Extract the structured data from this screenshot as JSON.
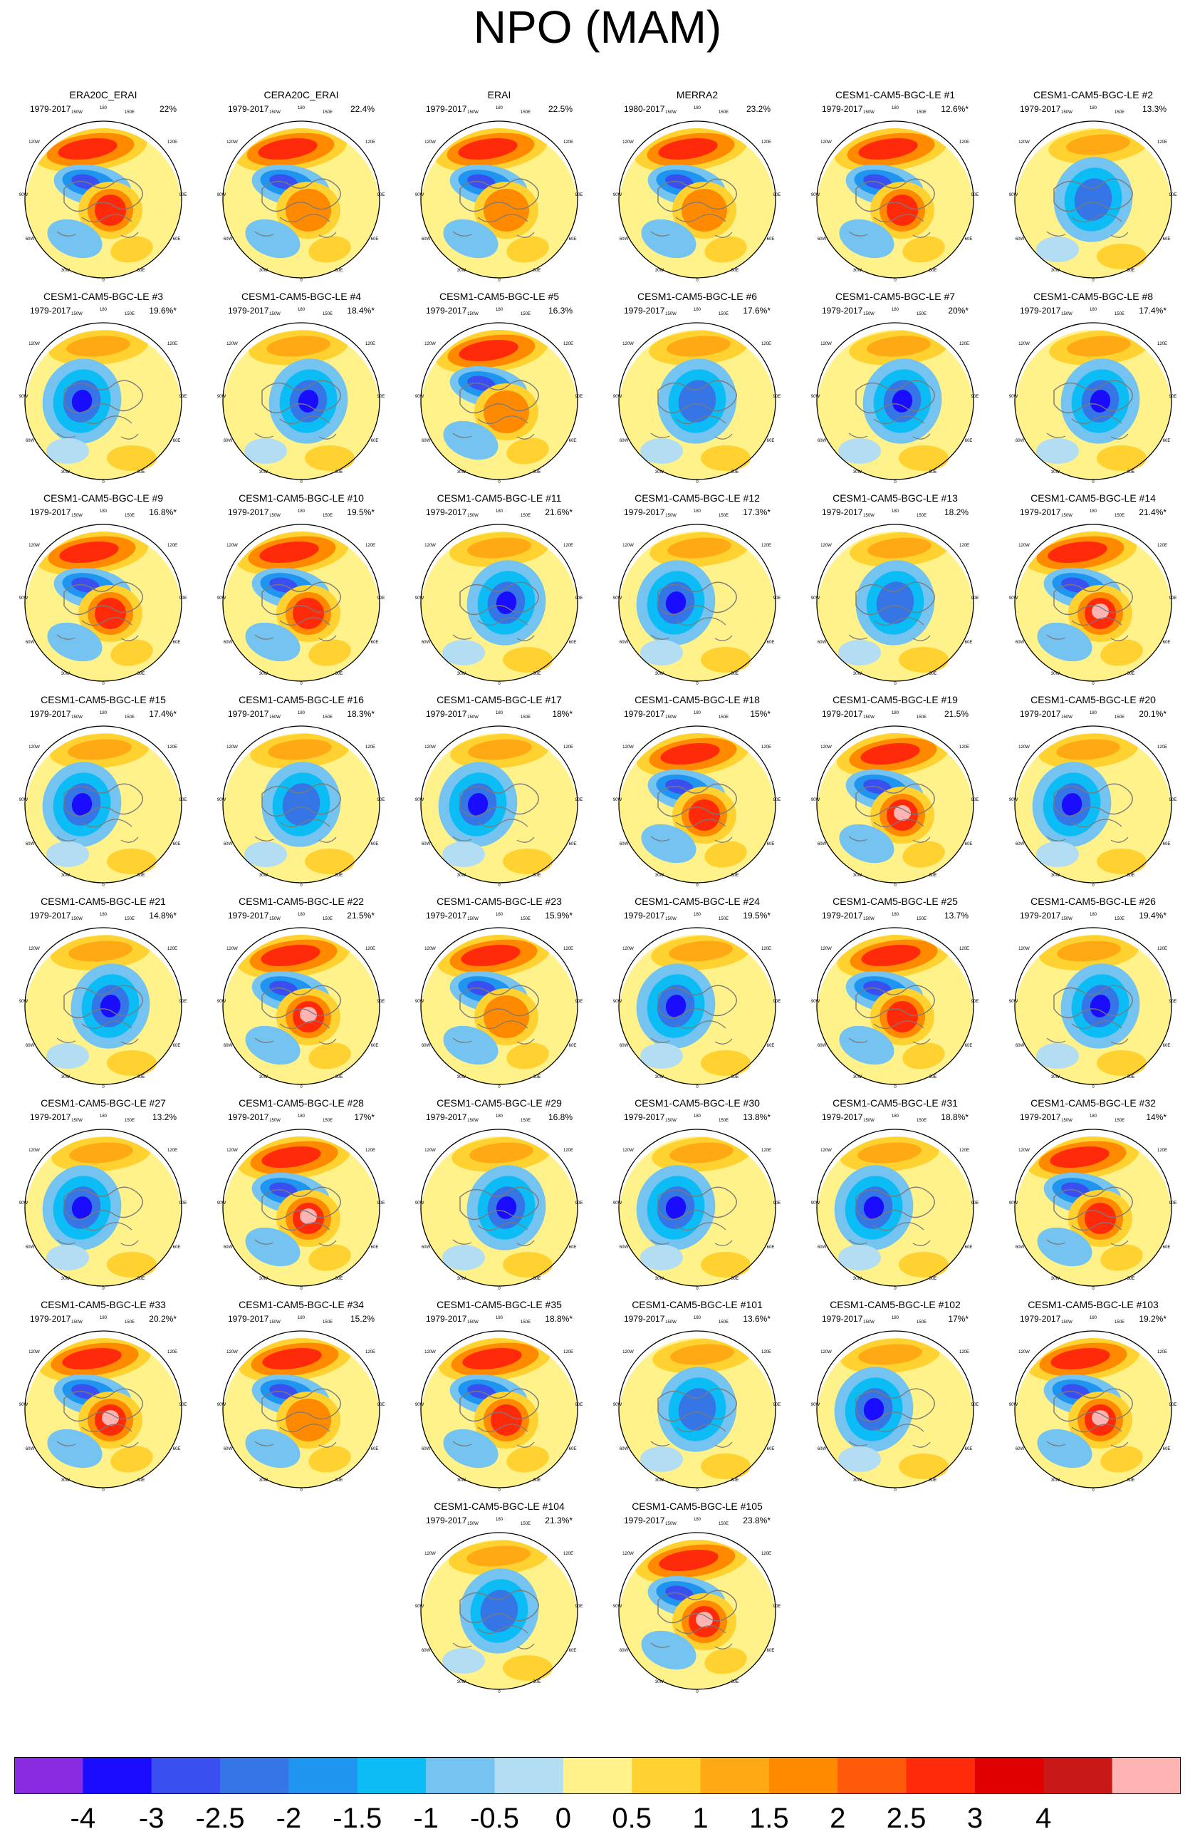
{
  "title": "NPO (MAM)",
  "map_labels": {
    "lon_top": "180",
    "lon_150w": "150W",
    "lon_150e": "150E",
    "lon_120w": "120W",
    "lon_120e": "120E",
    "lon_90w": "90W",
    "lon_90e": "90E",
    "lon_60w": "60W",
    "lon_60e": "60E",
    "lon_30w": "30W",
    "lon_30e": "30E",
    "lon_bottom": "0"
  },
  "panels": [
    {
      "name": "ERA20C_ERAI",
      "period": "1979-2017",
      "pct": "22%",
      "pattern": "pos-center"
    },
    {
      "name": "CERA20C_ERAI",
      "period": "1979-2017",
      "pct": "22.4%",
      "pattern": "pos-mild"
    },
    {
      "name": "ERAI",
      "period": "1979-2017",
      "pct": "22.5%",
      "pattern": "pos-mild"
    },
    {
      "name": "MERRA2",
      "period": "1980-2017",
      "pct": "23.2%",
      "pattern": "pos-mild"
    },
    {
      "name": "CESM1-CAM5-BGC-LE #1",
      "period": "1979-2017",
      "pct": "12.6%*",
      "pattern": "pos-center"
    },
    {
      "name": "CESM1-CAM5-BGC-LE #2",
      "period": "1979-2017",
      "pct": "13.3%",
      "pattern": "neg-diffuse"
    },
    {
      "name": "CESM1-CAM5-BGC-LE #3",
      "period": "1979-2017",
      "pct": "19.6%*",
      "pattern": "neg-left"
    },
    {
      "name": "CESM1-CAM5-BGC-LE #4",
      "period": "1979-2017",
      "pct": "18.4%*",
      "pattern": "neg-center"
    },
    {
      "name": "CESM1-CAM5-BGC-LE #5",
      "period": "1979-2017",
      "pct": "16.3%",
      "pattern": "pos-mild"
    },
    {
      "name": "CESM1-CAM5-BGC-LE #6",
      "period": "1979-2017",
      "pct": "17.6%*",
      "pattern": "neg-diffuse"
    },
    {
      "name": "CESM1-CAM5-BGC-LE #7",
      "period": "1979-2017",
      "pct": "20%*",
      "pattern": "neg-center"
    },
    {
      "name": "CESM1-CAM5-BGC-LE #8",
      "period": "1979-2017",
      "pct": "17.4%*",
      "pattern": "neg-center"
    },
    {
      "name": "CESM1-CAM5-BGC-LE #9",
      "period": "1979-2017",
      "pct": "16.8%*",
      "pattern": "pos-center"
    },
    {
      "name": "CESM1-CAM5-BGC-LE #10",
      "period": "1979-2017",
      "pct": "19.5%*",
      "pattern": "pos-center"
    },
    {
      "name": "CESM1-CAM5-BGC-LE #11",
      "period": "1979-2017",
      "pct": "21.6%*",
      "pattern": "neg-center"
    },
    {
      "name": "CESM1-CAM5-BGC-LE #12",
      "period": "1979-2017",
      "pct": "17.3%*",
      "pattern": "neg-left"
    },
    {
      "name": "CESM1-CAM5-BGC-LE #13",
      "period": "1979-2017",
      "pct": "18.2%",
      "pattern": "neg-diffuse"
    },
    {
      "name": "CESM1-CAM5-BGC-LE #14",
      "period": "1979-2017",
      "pct": "21.4%*",
      "pattern": "pos-strong"
    },
    {
      "name": "CESM1-CAM5-BGC-LE #15",
      "period": "1979-2017",
      "pct": "17.4%*",
      "pattern": "neg-left"
    },
    {
      "name": "CESM1-CAM5-BGC-LE #16",
      "period": "1979-2017",
      "pct": "18.3%*",
      "pattern": "neg-diffuse"
    },
    {
      "name": "CESM1-CAM5-BGC-LE #17",
      "period": "1979-2017",
      "pct": "18%*",
      "pattern": "neg-left"
    },
    {
      "name": "CESM1-CAM5-BGC-LE #18",
      "period": "1979-2017",
      "pct": "15%*",
      "pattern": "pos-center"
    },
    {
      "name": "CESM1-CAM5-BGC-LE #19",
      "period": "1979-2017",
      "pct": "21.5%",
      "pattern": "pos-strong"
    },
    {
      "name": "CESM1-CAM5-BGC-LE #20",
      "period": "1979-2017",
      "pct": "20.1%*",
      "pattern": "neg-left"
    },
    {
      "name": "CESM1-CAM5-BGC-LE #21",
      "period": "1979-2017",
      "pct": "14.8%*",
      "pattern": "neg-center"
    },
    {
      "name": "CESM1-CAM5-BGC-LE #22",
      "period": "1979-2017",
      "pct": "21.5%*",
      "pattern": "pos-strong"
    },
    {
      "name": "CESM1-CAM5-BGC-LE #23",
      "period": "1979-2017",
      "pct": "15.9%*",
      "pattern": "pos-mild"
    },
    {
      "name": "CESM1-CAM5-BGC-LE #24",
      "period": "1979-2017",
      "pct": "19.5%*",
      "pattern": "neg-left"
    },
    {
      "name": "CESM1-CAM5-BGC-LE #25",
      "period": "1979-2017",
      "pct": "13.7%",
      "pattern": "pos-center"
    },
    {
      "name": "CESM1-CAM5-BGC-LE #26",
      "period": "1979-2017",
      "pct": "19.4%*",
      "pattern": "neg-center"
    },
    {
      "name": "CESM1-CAM5-BGC-LE #27",
      "period": "1979-2017",
      "pct": "13.2%",
      "pattern": "neg-left"
    },
    {
      "name": "CESM1-CAM5-BGC-LE #28",
      "period": "1979-2017",
      "pct": "17%*",
      "pattern": "pos-strong"
    },
    {
      "name": "CESM1-CAM5-BGC-LE #29",
      "period": "1979-2017",
      "pct": "16.8%",
      "pattern": "neg-center"
    },
    {
      "name": "CESM1-CAM5-BGC-LE #30",
      "period": "1979-2017",
      "pct": "13.8%*",
      "pattern": "neg-left"
    },
    {
      "name": "CESM1-CAM5-BGC-LE #31",
      "period": "1979-2017",
      "pct": "18.8%*",
      "pattern": "neg-left"
    },
    {
      "name": "CESM1-CAM5-BGC-LE #32",
      "period": "1979-2017",
      "pct": "14%*",
      "pattern": "pos-center"
    },
    {
      "name": "CESM1-CAM5-BGC-LE #33",
      "period": "1979-2017",
      "pct": "20.2%*",
      "pattern": "pos-strong"
    },
    {
      "name": "CESM1-CAM5-BGC-LE #34",
      "period": "1979-2017",
      "pct": "15.2%",
      "pattern": "pos-mild"
    },
    {
      "name": "CESM1-CAM5-BGC-LE #35",
      "period": "1979-2017",
      "pct": "18.8%*",
      "pattern": "pos-center"
    },
    {
      "name": "CESM1-CAM5-BGC-LE #101",
      "period": "1979-2017",
      "pct": "13.6%*",
      "pattern": "neg-diffuse"
    },
    {
      "name": "CESM1-CAM5-BGC-LE #102",
      "period": "1979-2017",
      "pct": "17%*",
      "pattern": "neg-left"
    },
    {
      "name": "CESM1-CAM5-BGC-LE #103",
      "period": "1979-2017",
      "pct": "19.2%*",
      "pattern": "pos-strong"
    },
    {
      "name": "CESM1-CAM5-BGC-LE #104",
      "period": "1979-2017",
      "pct": "21.3%*",
      "pattern": "neg-diffuse"
    },
    {
      "name": "CESM1-CAM5-BGC-LE #105",
      "period": "1979-2017",
      "pct": "23.8%*",
      "pattern": "pos-strong"
    }
  ],
  "colorbar": {
    "colors": [
      "#8a2be2",
      "#1a0dff",
      "#3a4ff0",
      "#3575e5",
      "#2095f0",
      "#0cbcf5",
      "#74c3f0",
      "#b3ddf2",
      "#fff28a",
      "#ffd232",
      "#ffaa14",
      "#ff8a00",
      "#ff5a0a",
      "#ff2a0a",
      "#e00000",
      "#c81818",
      "#ffb4b4"
    ],
    "labels": [
      "-4",
      "-3",
      "-2.5",
      "-2",
      "-1.5",
      "-1",
      "-0.5",
      "0",
      "0.5",
      "1",
      "1.5",
      "2",
      "2.5",
      "3",
      "4"
    ]
  }
}
